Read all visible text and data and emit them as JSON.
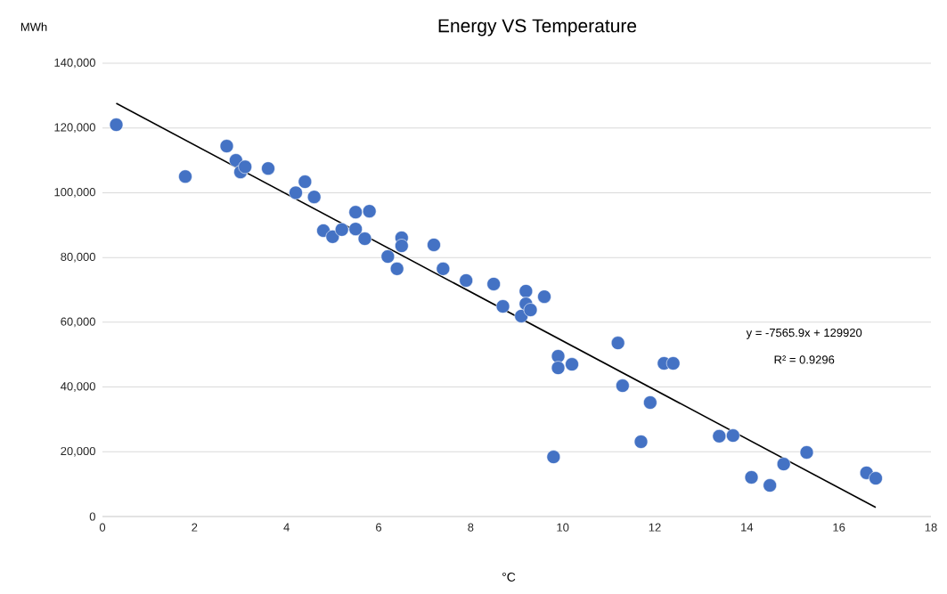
{
  "chart_data": {
    "type": "scatter",
    "title": "Energy VS Temperature",
    "xlabel": "°C",
    "ylabel": "MWh",
    "xlim": [
      0,
      18
    ],
    "xticks": [
      0,
      2,
      4,
      6,
      8,
      10,
      12,
      14,
      16,
      18
    ],
    "ylim": [
      0,
      140000
    ],
    "yticks": [
      {
        "value": 0,
        "label": "0"
      },
      {
        "value": 20000,
        "label": "20,000"
      },
      {
        "value": 40000,
        "label": "40,000"
      },
      {
        "value": 60000,
        "label": "60,000"
      },
      {
        "value": 80000,
        "label": "80,000"
      },
      {
        "value": 100000,
        "label": "100,000"
      },
      {
        "value": 120000,
        "label": "120,000"
      },
      {
        "value": 140000,
        "label": "140,000"
      }
    ],
    "grid": "y",
    "marker": "circle",
    "series": [
      {
        "color": "#4472c4",
        "x": [
          0.3,
          1.8,
          2.7,
          2.9,
          3.0,
          3.1,
          3.6,
          4.2,
          4.4,
          4.6,
          4.8,
          5.0,
          5.2,
          5.5,
          5.5,
          5.7,
          5.8,
          6.2,
          6.4,
          6.5,
          6.5,
          7.2,
          7.4,
          7.9,
          8.5,
          8.7,
          9.1,
          9.2,
          9.2,
          9.3,
          9.6,
          9.8,
          9.9,
          9.9,
          10.2,
          11.2,
          11.3,
          11.7,
          11.9,
          12.2,
          12.4,
          13.4,
          13.7,
          14.1,
          14.5,
          14.8,
          15.3,
          16.6,
          16.8
        ],
        "values": [
          121000,
          105000,
          114400,
          110000,
          106400,
          108000,
          107500,
          100000,
          103400,
          98700,
          88300,
          86400,
          88600,
          94000,
          88800,
          85800,
          94300,
          80300,
          76500,
          86100,
          83600,
          83900,
          76500,
          72900,
          71800,
          64900,
          61900,
          69600,
          65700,
          63800,
          67900,
          18400,
          49500,
          45900,
          47000,
          53600,
          40400,
          23100,
          35200,
          47300,
          47300,
          24800,
          25000,
          12100,
          9600,
          16200,
          19800,
          13500,
          11800
        ]
      },
      {
        "type": "line",
        "color": "#000000",
        "marker": "none",
        "line_style": "solid",
        "x": [
          0.3,
          16.8
        ],
        "values": [
          127600,
          2800
        ]
      }
    ],
    "annotations": [
      "y = -7565.9x + 129920",
      "R² = 0.9296"
    ]
  }
}
